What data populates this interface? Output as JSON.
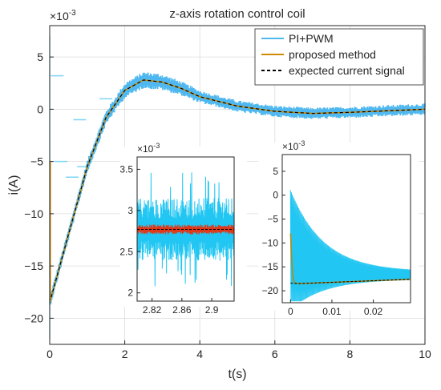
{
  "chart_data": [
    {
      "type": "line",
      "title": "z-axis rotation control coil",
      "xlabel": "t(s)",
      "ylabel": "i(A)",
      "exponent_label": "×10",
      "exponent_power": "-3",
      "xlim": [
        0,
        10
      ],
      "ylim": [
        -22.5,
        8
      ],
      "x_ticks": [
        0,
        2,
        4,
        6,
        8,
        10
      ],
      "y_ticks": [
        -20,
        -15,
        -10,
        -5,
        0,
        5
      ],
      "grid": true,
      "legend_position": "top-right",
      "series": [
        {
          "name": "PI+PWM",
          "color": "#4fb8f0",
          "style": "solid-noisy",
          "x": [
            0,
            0.5,
            1.0,
            1.5,
            2.0,
            2.5,
            3.0,
            3.5,
            4.0,
            5.0,
            6.0,
            7.0,
            8.0,
            9.0,
            10.0
          ],
          "y": [
            -18.5,
            -12.0,
            -5.5,
            -0.8,
            1.8,
            2.8,
            2.6,
            2.0,
            1.2,
            0.3,
            -0.2,
            -0.4,
            -0.3,
            -0.15,
            0.0
          ]
        },
        {
          "name": "proposed method",
          "color": "#d08a00",
          "style": "solid",
          "x": [
            0,
            0.5,
            1.0,
            1.5,
            2.0,
            2.5,
            3.0,
            3.5,
            4.0,
            5.0,
            6.0,
            7.0,
            8.0,
            9.0,
            10.0
          ],
          "y": [
            -18.5,
            -12.0,
            -5.5,
            -0.8,
            1.8,
            2.8,
            2.6,
            2.0,
            1.2,
            0.3,
            -0.2,
            -0.4,
            -0.3,
            -0.15,
            0.0
          ]
        },
        {
          "name": "expected current signal",
          "color": "#000000",
          "style": "dashed",
          "x": [
            0,
            0.5,
            1.0,
            1.5,
            2.0,
            2.5,
            3.0,
            3.5,
            4.0,
            5.0,
            6.0,
            7.0,
            8.0,
            9.0,
            10.0
          ],
          "y": [
            -18.5,
            -12.0,
            -5.5,
            -0.8,
            1.8,
            2.8,
            2.6,
            2.0,
            1.2,
            0.3,
            -0.2,
            -0.4,
            -0.3,
            -0.15,
            0.0
          ]
        }
      ]
    },
    {
      "type": "line",
      "exponent_label": "×10",
      "exponent_power": "-3",
      "xlim": [
        2.8,
        2.93
      ],
      "ylim": [
        1.9,
        3.65
      ],
      "x_ticks": [
        2.82,
        2.86,
        2.9
      ],
      "y_ticks": [
        2,
        2.5,
        3,
        3.5
      ],
      "series": [
        {
          "name": "PI+PWM",
          "color": "#21c6f2",
          "noise": 0.38,
          "mean": 2.77
        },
        {
          "name": "proposed method",
          "color": "#e03818",
          "noise": 0.06,
          "mean": 2.77
        },
        {
          "name": "expected current signal",
          "color": "#000000",
          "mean": 2.77
        }
      ]
    },
    {
      "type": "line",
      "exponent_label": "×10",
      "exponent_power": "-3",
      "xlim": [
        -0.002,
        0.029
      ],
      "ylim": [
        -22.5,
        8.5
      ],
      "x_ticks": [
        0,
        0.01,
        0.02
      ],
      "y_ticks": [
        -20,
        -15,
        -10,
        -5,
        0,
        5
      ],
      "series": [
        {
          "name": "PI+PWM",
          "color": "#21c6f2",
          "amplitude_start": 23.5,
          "decay": 0.008,
          "center_start": -11.5,
          "center_end": -16.8
        },
        {
          "name": "proposed method",
          "color": "#c08800",
          "x": [
            0,
            0.0005,
            0.001,
            0.002,
            0.029
          ],
          "y": [
            -8,
            -17,
            -18.4,
            -18.5,
            -17.6
          ]
        },
        {
          "name": "expected current signal",
          "color": "#000000",
          "x": [
            0,
            0.002,
            0.029
          ],
          "y": [
            -18.4,
            -18.5,
            -17.6
          ]
        }
      ]
    }
  ]
}
